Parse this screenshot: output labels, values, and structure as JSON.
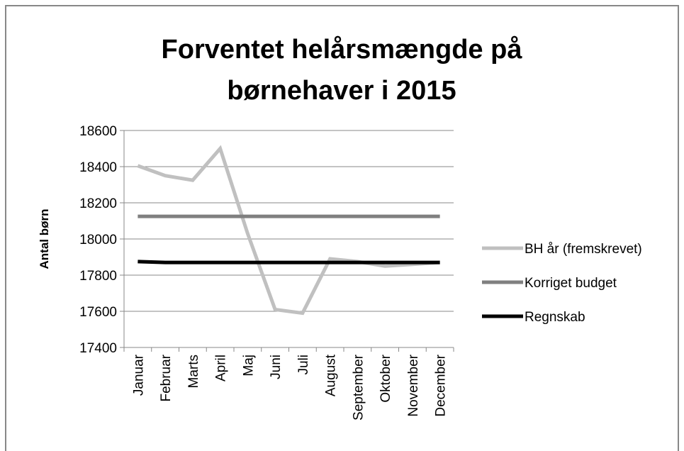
{
  "chart_data": {
    "type": "line",
    "title": [
      "Forventet helårsmængde på",
      "børnehaver i 2015"
    ],
    "y_label": "Antal børn",
    "categories": [
      "Januar",
      "Februar",
      "Marts",
      "April",
      "Maj",
      "Juni",
      "Juli",
      "August",
      "September",
      "Oktober",
      "November",
      "December"
    ],
    "series": [
      {
        "name": "BH år (fremskrevet)",
        "color": "#c0c0c0",
        "values": [
          18405,
          18350,
          18325,
          18500,
          18030,
          17610,
          17590,
          17890,
          17875,
          17850,
          17860,
          17870
        ]
      },
      {
        "name": "Korriget budget",
        "color": "#808080",
        "values": [
          18125,
          18125,
          18125,
          18125,
          18125,
          18125,
          18125,
          18125,
          18125,
          18125,
          18125,
          18125
        ]
      },
      {
        "name": "Regnskab",
        "color": "#000000",
        "values": [
          17875,
          17870,
          17870,
          17870,
          17870,
          17870,
          17870,
          17870,
          17870,
          17870,
          17870,
          17870
        ]
      }
    ],
    "ylim": [
      17400,
      18600
    ],
    "yticks": [
      17400,
      17600,
      17800,
      18000,
      18200,
      18400,
      18600
    ],
    "grid": true,
    "legend": "right"
  }
}
